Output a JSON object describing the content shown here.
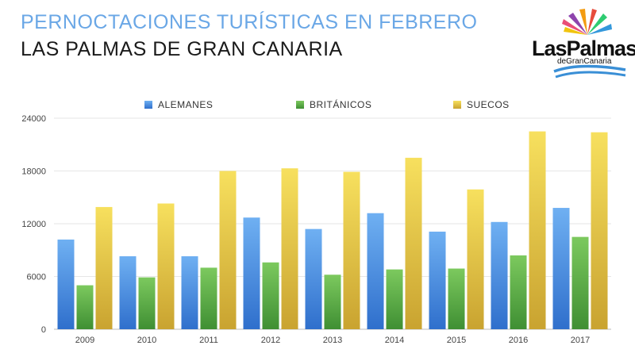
{
  "header": {
    "title": "PERNOCTACIONES TURÍSTICAS EN FEBRERO",
    "subtitle": "LAS PALMAS DE GRAN CANARIA"
  },
  "logo": {
    "line1": "LasPalmas",
    "line2": "deGranCanaria"
  },
  "colors": {
    "alemanes": "#4a8fe0",
    "britanicos": "#5aae45",
    "suecos": "#efd24a"
  },
  "chart_data": {
    "type": "bar",
    "categories": [
      "2009",
      "2010",
      "2011",
      "2012",
      "2013",
      "2014",
      "2015",
      "2016",
      "2017"
    ],
    "series": [
      {
        "name": "ALEMANES",
        "values": [
          10200,
          8300,
          8300,
          12700,
          11400,
          13200,
          11100,
          12200,
          13800
        ]
      },
      {
        "name": "BRITÁNICOS",
        "values": [
          5000,
          5900,
          7000,
          7600,
          6200,
          6800,
          6900,
          8400,
          10500
        ]
      },
      {
        "name": "SUECOS",
        "values": [
          13900,
          14300,
          18000,
          18300,
          17900,
          19500,
          15900,
          22500,
          22400
        ]
      }
    ],
    "yticks": [
      "0",
      "6000",
      "12000",
      "18000",
      "24000"
    ],
    "ylim": [
      0,
      24000
    ],
    "legend_position": "top",
    "grid": true
  }
}
